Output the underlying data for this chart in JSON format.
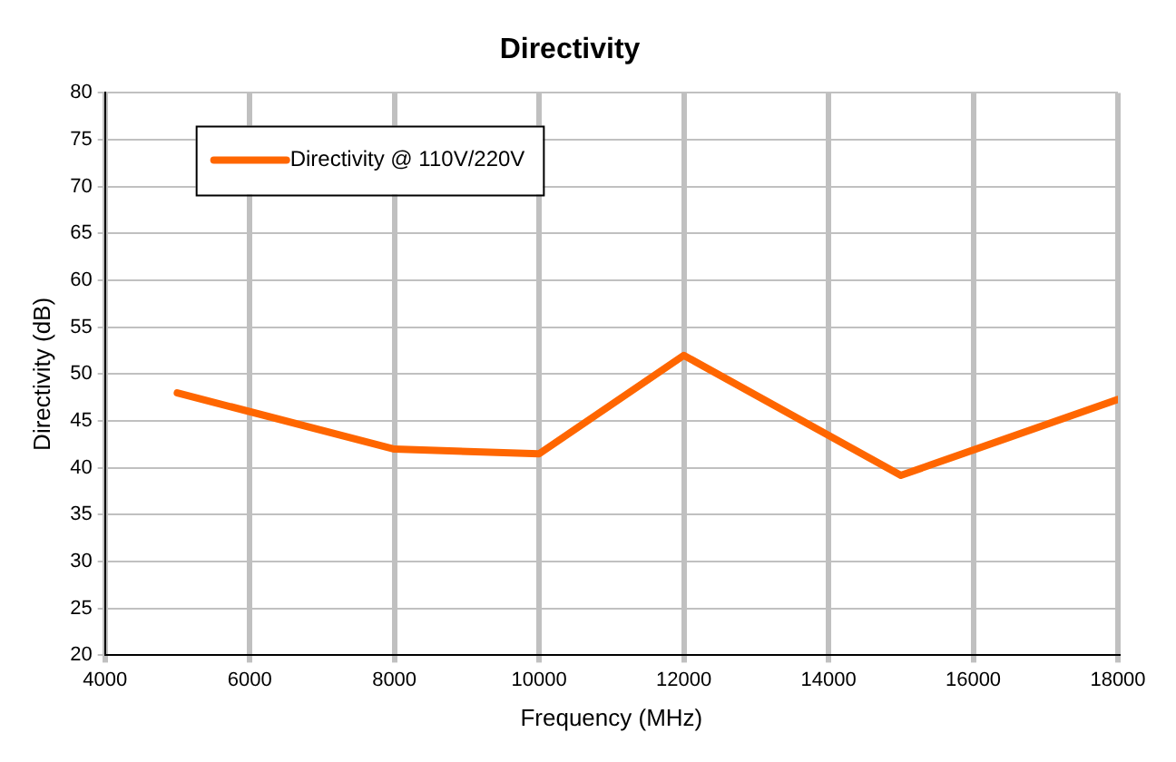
{
  "chart_data": {
    "type": "line",
    "title": "Directivity",
    "xlabel": "Frequency (MHz)",
    "ylabel": "Directivity (dB)",
    "x": [
      5000,
      8000,
      10000,
      12000,
      15000,
      18000
    ],
    "series": [
      {
        "name": "Directivity @ 110V/220V",
        "color": "#ff6600",
        "values": [
          48,
          42,
          41.5,
          52,
          39.2,
          47.3
        ]
      }
    ],
    "xlim": [
      4000,
      18000
    ],
    "xticks": [
      4000,
      6000,
      8000,
      10000,
      12000,
      14000,
      16000,
      18000
    ],
    "ylim": [
      20,
      80
    ],
    "yticks": [
      20,
      25,
      30,
      35,
      40,
      45,
      50,
      55,
      60,
      65,
      70,
      75,
      80
    ],
    "grid": true,
    "legend": "top left",
    "marker": "none",
    "line_style": "solid"
  }
}
